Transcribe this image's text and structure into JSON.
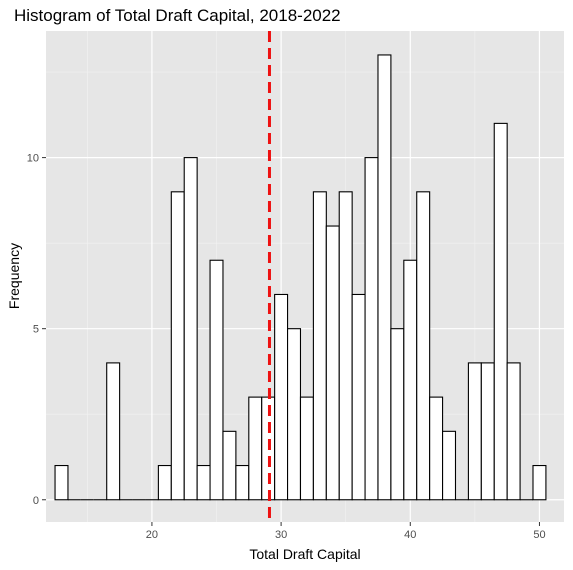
{
  "chart_data": {
    "type": "bar",
    "subtype": "histogram",
    "title": "Histogram of Total Draft Capital, 2018-2022",
    "xlabel": "Total Draft Capital",
    "ylabel": "Frequency",
    "xlim": [
      11.8,
      51.9
    ],
    "ylim": [
      -0.65,
      13.7
    ],
    "x_ticks": [
      20,
      30,
      40,
      50
    ],
    "y_ticks": [
      0,
      5,
      10
    ],
    "bin_width": 1,
    "bins": [
      {
        "x": 13,
        "count": 1
      },
      {
        "x": 14,
        "count": 0
      },
      {
        "x": 15,
        "count": 0
      },
      {
        "x": 16,
        "count": 0
      },
      {
        "x": 17,
        "count": 4
      },
      {
        "x": 18,
        "count": 0
      },
      {
        "x": 19,
        "count": 0
      },
      {
        "x": 20,
        "count": 0
      },
      {
        "x": 21,
        "count": 1
      },
      {
        "x": 22,
        "count": 9
      },
      {
        "x": 23,
        "count": 10
      },
      {
        "x": 24,
        "count": 1
      },
      {
        "x": 25,
        "count": 7
      },
      {
        "x": 26,
        "count": 2
      },
      {
        "x": 27,
        "count": 1
      },
      {
        "x": 28,
        "count": 3
      },
      {
        "x": 29,
        "count": 3
      },
      {
        "x": 30,
        "count": 6
      },
      {
        "x": 31,
        "count": 5
      },
      {
        "x": 32,
        "count": 3
      },
      {
        "x": 33,
        "count": 9
      },
      {
        "x": 34,
        "count": 8
      },
      {
        "x": 35,
        "count": 9
      },
      {
        "x": 36,
        "count": 6
      },
      {
        "x": 37,
        "count": 10
      },
      {
        "x": 38,
        "count": 13
      },
      {
        "x": 39,
        "count": 5
      },
      {
        "x": 40,
        "count": 7
      },
      {
        "x": 41,
        "count": 9
      },
      {
        "x": 42,
        "count": 3
      },
      {
        "x": 43,
        "count": 2
      },
      {
        "x": 44,
        "count": 0
      },
      {
        "x": 45,
        "count": 4
      },
      {
        "x": 46,
        "count": 4
      },
      {
        "x": 47,
        "count": 11
      },
      {
        "x": 48,
        "count": 4
      },
      {
        "x": 49,
        "count": 0
      },
      {
        "x": 50,
        "count": 1
      }
    ],
    "reference_line": {
      "x": 29.1,
      "color": "#ee1111",
      "style": "dashed"
    },
    "panel_background": "#e6e6e6",
    "grid": true,
    "bar_fill": "#ffffff",
    "bar_stroke": "#000000"
  }
}
